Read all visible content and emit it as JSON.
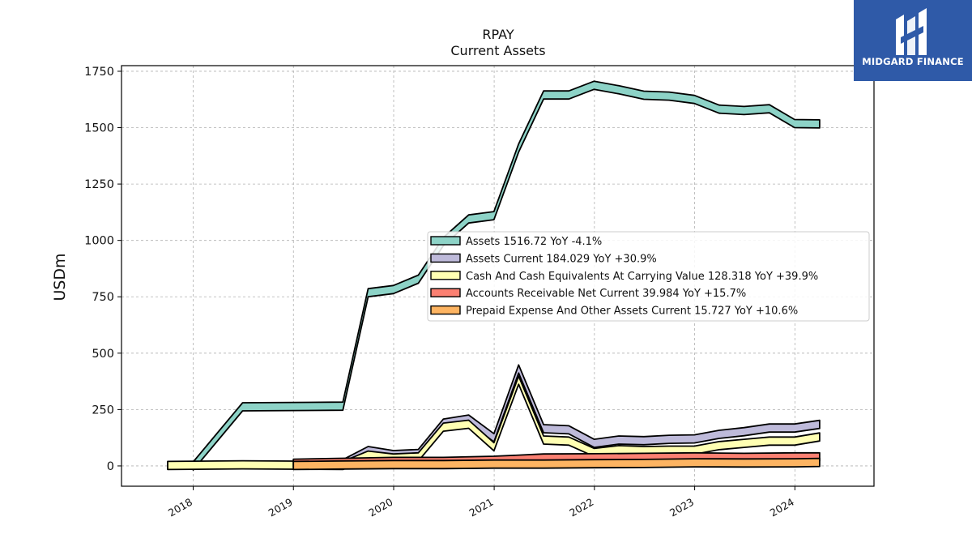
{
  "logo": {
    "text": "MIDGARD FINANCE",
    "bg": "#2f5aa8"
  },
  "chart_data": {
    "type": "area",
    "title": "RPAY",
    "subtitle": "Current  Assets",
    "ylabel": "USDm",
    "xlabel": "",
    "ylim": [
      -90,
      1775
    ],
    "yticks": [
      0,
      250,
      500,
      750,
      1000,
      1250,
      1500,
      1750
    ],
    "xticks": [
      "2018",
      "2019",
      "2020",
      "2021",
      "2022",
      "2023",
      "2024"
    ],
    "grid": true,
    "legend_position": "center-right",
    "series": [
      {
        "name": "Assets",
        "legend": "Assets  1516.72 YoY -4.1%",
        "color": "#8dd3c7",
        "x": [
          "2018-01-01",
          "2018-06-30",
          "2019-06-30",
          "2019-09-30",
          "2019-12-31",
          "2020-03-31",
          "2020-06-30",
          "2020-09-30",
          "2020-12-31",
          "2021-03-31",
          "2021-06-30",
          "2021-09-30",
          "2021-12-31",
          "2022-03-31",
          "2022-06-30",
          "2022-09-30",
          "2022-12-31",
          "2023-03-31",
          "2023-06-30",
          "2023-09-30",
          "2023-12-31",
          "2024-03-31"
        ],
        "values": [
          0,
          262,
          265,
          768,
          782,
          828,
          995,
          1095,
          1110,
          1410,
          1645,
          1645,
          1688,
          1668,
          1644,
          1640,
          1625,
          1582,
          1576,
          1584,
          1518,
          1516.72
        ]
      },
      {
        "name": "Assets Current",
        "legend": "Assets Current  184.029 YoY +30.9%",
        "color": "#bebada",
        "x": [
          "2019-06-30",
          "2019-09-30",
          "2019-12-31",
          "2020-03-31",
          "2020-06-30",
          "2020-09-30",
          "2020-12-31",
          "2021-03-31",
          "2021-06-30",
          "2021-09-30",
          "2021-12-31",
          "2022-03-31",
          "2022-06-30",
          "2022-09-30",
          "2022-12-31",
          "2023-03-31",
          "2023-06-30",
          "2023-09-30",
          "2023-12-31",
          "2024-03-31"
        ],
        "values": [
          10,
          68,
          50,
          55,
          190,
          208,
          125,
          430,
          165,
          160,
          100,
          115,
          112,
          118,
          120,
          140,
          152,
          168,
          168,
          184.029
        ]
      },
      {
        "name": "Cash And Cash Equivalents At Carrying Value",
        "legend": "Cash And Cash Equivalents At Carrying Value  128.318 YoY +39.9%",
        "color": "#ffffb3",
        "x": [
          "2017-09-30",
          "2018-06-30",
          "2019-06-30",
          "2019-09-30",
          "2019-12-31",
          "2020-03-31",
          "2020-06-30",
          "2020-09-30",
          "2020-12-31",
          "2021-03-31",
          "2021-06-30",
          "2021-09-30",
          "2021-12-31",
          "2022-03-31",
          "2022-06-30",
          "2022-09-30",
          "2022-12-31",
          "2023-03-31",
          "2023-06-30",
          "2023-09-30",
          "2023-12-31",
          "2024-03-31"
        ],
        "values": [
          2,
          5,
          2,
          48,
          35,
          40,
          172,
          185,
          85,
          380,
          115,
          110,
          60,
          72,
          68,
          70,
          70,
          90,
          100,
          110,
          110,
          128.318
        ]
      },
      {
        "name": "Accounts Receivable Net Current",
        "legend": "Accounts Receivable Net Current  39.984 YoY +15.7%",
        "color": "#fb8072",
        "x": [
          "2019-01-01",
          "2019-06-30",
          "2019-12-31",
          "2020-06-30",
          "2020-12-31",
          "2021-06-30",
          "2021-12-31",
          "2022-06-30",
          "2022-12-31",
          "2023-06-30",
          "2023-12-31",
          "2024-03-31"
        ],
        "values": [
          12,
          16,
          20,
          20,
          25,
          35,
          36,
          38,
          40,
          38,
          40,
          39.984
        ]
      },
      {
        "name": "Prepaid Expense And Other Assets Current",
        "legend": "Prepaid Expense And Other Assets Current  15.727 YoY +10.6%",
        "color": "#fdb462",
        "x": [
          "2019-01-01",
          "2019-06-30",
          "2019-12-31",
          "2020-06-30",
          "2020-12-31",
          "2021-06-30",
          "2021-12-31",
          "2022-06-30",
          "2022-12-31",
          "2023-06-30",
          "2023-12-31",
          "2024-03-31"
        ],
        "values": [
          2,
          4,
          6,
          6,
          8,
          8,
          10,
          11,
          14,
          13,
          14,
          15.727
        ]
      }
    ]
  }
}
